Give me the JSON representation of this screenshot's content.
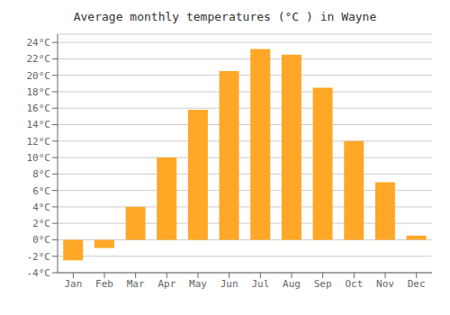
{
  "chart_data": {
    "type": "bar",
    "title": "Average monthly temperatures (°C ) in Wayne",
    "categories": [
      "Jan",
      "Feb",
      "Mar",
      "Apr",
      "May",
      "Jun",
      "Jul",
      "Aug",
      "Sep",
      "Oct",
      "Nov",
      "Dec"
    ],
    "values": [
      -2.5,
      -1.0,
      4.0,
      10.0,
      15.8,
      20.5,
      23.2,
      22.5,
      18.5,
      12.0,
      7.0,
      0.5
    ],
    "color": "#FFA726",
    "ylim": [
      -4,
      25
    ],
    "yticks": [
      {
        "value": -4,
        "label": "-4°C"
      },
      {
        "value": -2,
        "label": "-2°C"
      },
      {
        "value": 0,
        "label": "0°C"
      },
      {
        "value": 2,
        "label": "2°C"
      },
      {
        "value": 4,
        "label": "4°C"
      },
      {
        "value": 6,
        "label": "6°C"
      },
      {
        "value": 8,
        "label": "8°C"
      },
      {
        "value": 10,
        "label": "10°C"
      },
      {
        "value": 12,
        "label": "12°C"
      },
      {
        "value": 14,
        "label": "14°C"
      },
      {
        "value": 16,
        "label": "16°C"
      },
      {
        "value": 18,
        "label": "18°C"
      },
      {
        "value": 20,
        "label": "20°C"
      },
      {
        "value": 22,
        "label": "22°C"
      },
      {
        "value": 24,
        "label": "24°C"
      }
    ],
    "grid": true
  }
}
